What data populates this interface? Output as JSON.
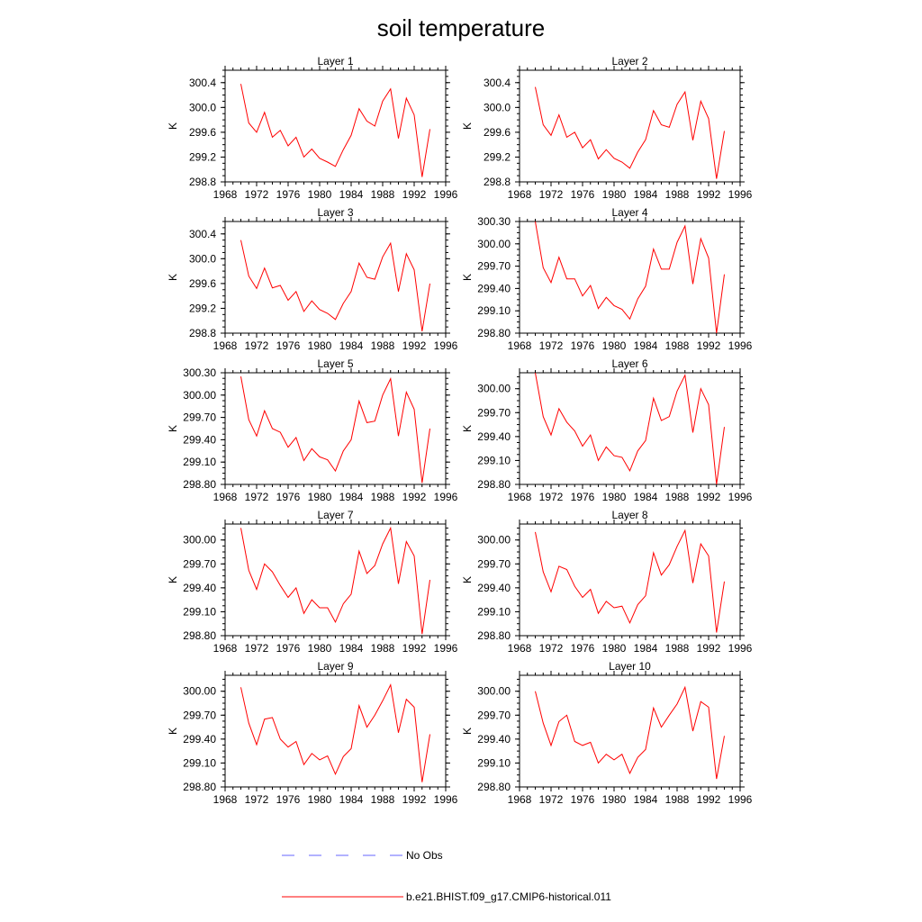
{
  "figure": {
    "title": "soil temperature"
  },
  "colors": {
    "model": "#ff0000",
    "obs": "#6666ff",
    "axis": "#000000"
  },
  "chart_data": [
    {
      "type": "line",
      "title": "Layer 1",
      "ylabel": "K",
      "xlim": [
        1968,
        1996
      ],
      "xticks": [
        1968,
        1972,
        1976,
        1980,
        1984,
        1988,
        1992,
        1996
      ],
      "ylim": [
        298.8,
        300.6
      ],
      "yticks": [
        298.8,
        299.2,
        299.6,
        300.0,
        300.4
      ],
      "yfmt": 1,
      "x": [
        1970,
        1971,
        1972,
        1973,
        1974,
        1975,
        1976,
        1977,
        1978,
        1979,
        1980,
        1981,
        1982,
        1983,
        1984,
        1985,
        1986,
        1987,
        1988,
        1989,
        1990,
        1991,
        1992,
        1993,
        1994
      ],
      "series": [
        {
          "name": "b.e21.BHIST.f09_g17.CMIP6-historical.011",
          "values": [
            300.38,
            299.75,
            299.6,
            299.92,
            299.52,
            299.63,
            299.38,
            299.52,
            299.2,
            299.33,
            299.18,
            299.12,
            299.05,
            299.32,
            299.55,
            299.98,
            299.78,
            299.7,
            300.1,
            300.3,
            299.5,
            300.15,
            299.88,
            298.88,
            299.65
          ]
        }
      ]
    },
    {
      "type": "line",
      "title": "Layer 2",
      "ylabel": "K",
      "xlim": [
        1968,
        1996
      ],
      "xticks": [
        1968,
        1972,
        1976,
        1980,
        1984,
        1988,
        1992,
        1996
      ],
      "ylim": [
        298.8,
        300.6
      ],
      "yticks": [
        298.8,
        299.2,
        299.6,
        300.0,
        300.4
      ],
      "yfmt": 1,
      "x": [
        1970,
        1971,
        1972,
        1973,
        1974,
        1975,
        1976,
        1977,
        1978,
        1979,
        1980,
        1981,
        1982,
        1983,
        1984,
        1985,
        1986,
        1987,
        1988,
        1989,
        1990,
        1991,
        1992,
        1993,
        1994
      ],
      "series": [
        {
          "name": "b.e21.BHIST.f09_g17.CMIP6-historical.011",
          "values": [
            300.33,
            299.72,
            299.55,
            299.88,
            299.52,
            299.6,
            299.35,
            299.48,
            299.17,
            299.32,
            299.18,
            299.12,
            299.02,
            299.28,
            299.48,
            299.95,
            299.72,
            299.68,
            300.05,
            300.25,
            299.47,
            300.1,
            299.82,
            298.85,
            299.62
          ]
        }
      ]
    },
    {
      "type": "line",
      "title": "Layer 3",
      "ylabel": "K",
      "xlim": [
        1968,
        1996
      ],
      "xticks": [
        1968,
        1972,
        1976,
        1980,
        1984,
        1988,
        1992,
        1996
      ],
      "ylim": [
        298.8,
        300.6
      ],
      "yticks": [
        298.8,
        299.2,
        299.6,
        300.0,
        300.4
      ],
      "yfmt": 1,
      "x": [
        1970,
        1971,
        1972,
        1973,
        1974,
        1975,
        1976,
        1977,
        1978,
        1979,
        1980,
        1981,
        1982,
        1983,
        1984,
        1985,
        1986,
        1987,
        1988,
        1989,
        1990,
        1991,
        1992,
        1993,
        1994
      ],
      "series": [
        {
          "name": "b.e21.BHIST.f09_g17.CMIP6-historical.011",
          "values": [
            300.3,
            299.72,
            299.52,
            299.85,
            299.53,
            299.57,
            299.33,
            299.47,
            299.15,
            299.32,
            299.18,
            299.12,
            299.02,
            299.28,
            299.47,
            299.93,
            299.7,
            299.67,
            300.03,
            300.25,
            299.47,
            300.08,
            299.82,
            298.83,
            299.6
          ]
        }
      ]
    },
    {
      "type": "line",
      "title": "Layer 4",
      "ylabel": "K",
      "xlim": [
        1968,
        1996
      ],
      "xticks": [
        1968,
        1972,
        1976,
        1980,
        1984,
        1988,
        1992,
        1996
      ],
      "ylim": [
        298.8,
        300.3
      ],
      "yticks": [
        298.8,
        299.1,
        299.4,
        299.7,
        300.0,
        300.3
      ],
      "yfmt": 2,
      "x": [
        1970,
        1971,
        1972,
        1973,
        1974,
        1975,
        1976,
        1977,
        1978,
        1979,
        1980,
        1981,
        1982,
        1983,
        1984,
        1985,
        1986,
        1987,
        1988,
        1989,
        1990,
        1991,
        1992,
        1993,
        1994
      ],
      "series": [
        {
          "name": "b.e21.BHIST.f09_g17.CMIP6-historical.011",
          "values": [
            300.3,
            299.68,
            299.48,
            299.82,
            299.53,
            299.53,
            299.3,
            299.44,
            299.13,
            299.28,
            299.17,
            299.12,
            298.99,
            299.26,
            299.43,
            299.93,
            299.66,
            299.66,
            300.02,
            300.24,
            299.46,
            300.07,
            299.81,
            298.8,
            299.59
          ]
        }
      ]
    },
    {
      "type": "line",
      "title": "Layer 5",
      "ylabel": "K",
      "xlim": [
        1968,
        1996
      ],
      "xticks": [
        1968,
        1972,
        1976,
        1980,
        1984,
        1988,
        1992,
        1996
      ],
      "ylim": [
        298.8,
        300.3
      ],
      "yticks": [
        298.8,
        299.1,
        299.4,
        299.7,
        300.0,
        300.3
      ],
      "yfmt": 2,
      "x": [
        1970,
        1971,
        1972,
        1973,
        1974,
        1975,
        1976,
        1977,
        1978,
        1979,
        1980,
        1981,
        1982,
        1983,
        1984,
        1985,
        1986,
        1987,
        1988,
        1989,
        1990,
        1991,
        1992,
        1993,
        1994
      ],
      "series": [
        {
          "name": "b.e21.BHIST.f09_g17.CMIP6-historical.011",
          "values": [
            300.25,
            299.67,
            299.45,
            299.79,
            299.55,
            299.5,
            299.3,
            299.43,
            299.12,
            299.28,
            299.17,
            299.13,
            298.98,
            299.25,
            299.4,
            299.92,
            299.63,
            299.65,
            300.0,
            300.22,
            299.45,
            300.04,
            299.81,
            298.82,
            299.55
          ]
        }
      ]
    },
    {
      "type": "line",
      "title": "Layer 6",
      "ylabel": "K",
      "xlim": [
        1968,
        1996
      ],
      "xticks": [
        1968,
        1972,
        1976,
        1980,
        1984,
        1988,
        1992,
        1996
      ],
      "ylim": [
        298.8,
        300.2
      ],
      "yticks": [
        298.8,
        299.1,
        299.4,
        299.7,
        300.0
      ],
      "yfmt": 2,
      "x": [
        1970,
        1971,
        1972,
        1973,
        1974,
        1975,
        1976,
        1977,
        1978,
        1979,
        1980,
        1981,
        1982,
        1983,
        1984,
        1985,
        1986,
        1987,
        1988,
        1989,
        1990,
        1991,
        1992,
        1993,
        1994
      ],
      "series": [
        {
          "name": "b.e21.BHIST.f09_g17.CMIP6-historical.011",
          "values": [
            300.2,
            299.65,
            299.42,
            299.75,
            299.58,
            299.47,
            299.28,
            299.42,
            299.1,
            299.27,
            299.16,
            299.14,
            298.97,
            299.22,
            299.35,
            299.88,
            299.6,
            299.65,
            299.97,
            300.17,
            299.45,
            300.0,
            299.8,
            298.8,
            299.52
          ]
        }
      ]
    },
    {
      "type": "line",
      "title": "Layer 7",
      "ylabel": "K",
      "xlim": [
        1968,
        1996
      ],
      "xticks": [
        1968,
        1972,
        1976,
        1980,
        1984,
        1988,
        1992,
        1996
      ],
      "ylim": [
        298.8,
        300.2
      ],
      "yticks": [
        298.8,
        299.1,
        299.4,
        299.7,
        300.0
      ],
      "yfmt": 2,
      "x": [
        1970,
        1971,
        1972,
        1973,
        1974,
        1975,
        1976,
        1977,
        1978,
        1979,
        1980,
        1981,
        1982,
        1983,
        1984,
        1985,
        1986,
        1987,
        1988,
        1989,
        1990,
        1991,
        1992,
        1993,
        1994
      ],
      "series": [
        {
          "name": "b.e21.BHIST.f09_g17.CMIP6-historical.011",
          "values": [
            300.15,
            299.62,
            299.38,
            299.7,
            299.6,
            299.43,
            299.28,
            299.4,
            299.08,
            299.25,
            299.15,
            299.15,
            298.97,
            299.2,
            299.32,
            299.86,
            299.58,
            299.68,
            299.95,
            300.15,
            299.45,
            299.98,
            299.8,
            298.82,
            299.5
          ]
        }
      ]
    },
    {
      "type": "line",
      "title": "Layer 8",
      "ylabel": "K",
      "xlim": [
        1968,
        1996
      ],
      "xticks": [
        1968,
        1972,
        1976,
        1980,
        1984,
        1988,
        1992,
        1996
      ],
      "ylim": [
        298.8,
        300.2
      ],
      "yticks": [
        298.8,
        299.1,
        299.4,
        299.7,
        300.0
      ],
      "yfmt": 2,
      "x": [
        1970,
        1971,
        1972,
        1973,
        1974,
        1975,
        1976,
        1977,
        1978,
        1979,
        1980,
        1981,
        1982,
        1983,
        1984,
        1985,
        1986,
        1987,
        1988,
        1989,
        1990,
        1991,
        1992,
        1993,
        1994
      ],
      "series": [
        {
          "name": "b.e21.BHIST.f09_g17.CMIP6-historical.011",
          "values": [
            300.1,
            299.6,
            299.35,
            299.67,
            299.63,
            299.42,
            299.28,
            299.38,
            299.08,
            299.23,
            299.15,
            299.17,
            298.96,
            299.19,
            299.3,
            299.84,
            299.56,
            299.69,
            299.92,
            300.12,
            299.46,
            299.95,
            299.8,
            298.84,
            299.48
          ]
        }
      ]
    },
    {
      "type": "line",
      "title": "Layer 9",
      "ylabel": "K",
      "xlim": [
        1968,
        1996
      ],
      "xticks": [
        1968,
        1972,
        1976,
        1980,
        1984,
        1988,
        1992,
        1996
      ],
      "ylim": [
        298.8,
        300.2
      ],
      "yticks": [
        298.8,
        299.1,
        299.4,
        299.7,
        300.0
      ],
      "yfmt": 2,
      "x": [
        1970,
        1971,
        1972,
        1973,
        1974,
        1975,
        1976,
        1977,
        1978,
        1979,
        1980,
        1981,
        1982,
        1983,
        1984,
        1985,
        1986,
        1987,
        1988,
        1989,
        1990,
        1991,
        1992,
        1993,
        1994
      ],
      "series": [
        {
          "name": "b.e21.BHIST.f09_g17.CMIP6-historical.011",
          "values": [
            300.05,
            299.6,
            299.33,
            299.65,
            299.67,
            299.4,
            299.3,
            299.37,
            299.08,
            299.22,
            299.14,
            299.19,
            298.96,
            299.18,
            299.28,
            299.82,
            299.55,
            299.7,
            299.88,
            300.08,
            299.48,
            299.9,
            299.8,
            298.86,
            299.46
          ]
        }
      ]
    },
    {
      "type": "line",
      "title": "Layer 10",
      "ylabel": "K",
      "xlim": [
        1968,
        1996
      ],
      "xticks": [
        1968,
        1972,
        1976,
        1980,
        1984,
        1988,
        1992,
        1996
      ],
      "ylim": [
        298.8,
        300.2
      ],
      "yticks": [
        298.8,
        299.1,
        299.4,
        299.7,
        300.0
      ],
      "yfmt": 2,
      "x": [
        1970,
        1971,
        1972,
        1973,
        1974,
        1975,
        1976,
        1977,
        1978,
        1979,
        1980,
        1981,
        1982,
        1983,
        1984,
        1985,
        1986,
        1987,
        1988,
        1989,
        1990,
        1991,
        1992,
        1993,
        1994
      ],
      "series": [
        {
          "name": "b.e21.BHIST.f09_g17.CMIP6-historical.011",
          "values": [
            300.0,
            299.6,
            299.32,
            299.62,
            299.7,
            299.37,
            299.32,
            299.36,
            299.1,
            299.21,
            299.14,
            299.21,
            298.97,
            299.17,
            299.27,
            299.79,
            299.55,
            299.7,
            299.84,
            300.05,
            299.5,
            299.87,
            299.8,
            298.9,
            299.44
          ]
        }
      ]
    }
  ],
  "legend": {
    "entries": [
      {
        "label": "No Obs",
        "style": "dashed",
        "color": "#6666ff"
      },
      {
        "label": "b.e21.BHIST.f09_g17.CMIP6-historical.011",
        "style": "solid",
        "color": "#ff0000"
      }
    ]
  }
}
